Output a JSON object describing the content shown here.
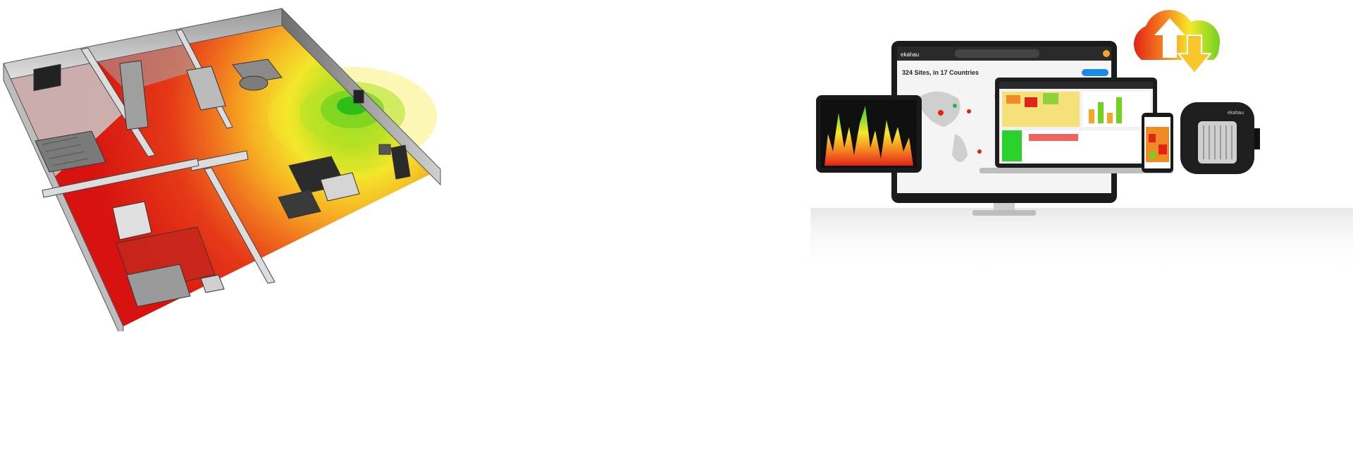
{
  "devices": {
    "monitor": {
      "logo": "ekahau",
      "headline": "324 Sites, in 17 Countries"
    },
    "access_point": {
      "logo": "ekahau"
    }
  },
  "icons": {
    "cloud": "cloud-sync-icon",
    "upload_arrow": "arrow-up-icon",
    "download_arrow": "arrow-down-icon"
  },
  "colors": {
    "heat_red": "#e2231a",
    "heat_orange": "#f5821f",
    "heat_yellow": "#f6e72a",
    "heat_green": "#6fd21f",
    "device_dark": "#1a1a1a"
  }
}
